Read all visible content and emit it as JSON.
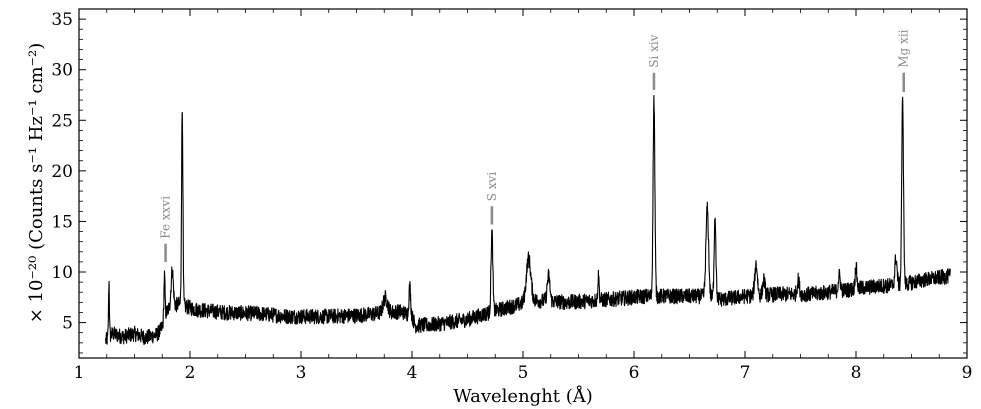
{
  "chart_data": {
    "type": "line",
    "xlabel": "Wavelenght (Å)",
    "ylabel": "× 10⁻²⁰ (Counts s⁻¹ Hz⁻¹ cm⁻²)",
    "xlim": [
      1,
      9
    ],
    "ylim": [
      1.5,
      36
    ],
    "xticks": [
      1,
      2,
      3,
      4,
      5,
      6,
      7,
      8,
      9
    ],
    "yticks": [
      5,
      10,
      15,
      20,
      25,
      30,
      35
    ],
    "grid": false,
    "series_color": "#000000",
    "annotation_color": "#8a8a8a",
    "series": [
      {
        "name": "",
        "baseline": [
          [
            1.24,
            3.2
          ],
          [
            1.3,
            3.9
          ],
          [
            1.4,
            3.6
          ],
          [
            1.5,
            3.9
          ],
          [
            1.6,
            3.5
          ],
          [
            1.7,
            3.8
          ],
          [
            1.74,
            4.3
          ],
          [
            1.78,
            5.8
          ],
          [
            1.82,
            6.6
          ],
          [
            1.9,
            6.8
          ],
          [
            1.96,
            6.6
          ],
          [
            2.05,
            6.3
          ],
          [
            2.3,
            6.0
          ],
          [
            2.6,
            5.9
          ],
          [
            2.9,
            5.6
          ],
          [
            3.2,
            5.6
          ],
          [
            3.5,
            5.7
          ],
          [
            3.7,
            5.9
          ],
          [
            3.9,
            6.1
          ],
          [
            4.0,
            5.6
          ],
          [
            4.03,
            4.7
          ],
          [
            4.2,
            4.8
          ],
          [
            4.5,
            5.3
          ],
          [
            4.7,
            6.0
          ],
          [
            4.9,
            6.6
          ],
          [
            5.1,
            7.2
          ],
          [
            5.4,
            7.0
          ],
          [
            5.8,
            7.3
          ],
          [
            6.1,
            7.6
          ],
          [
            6.3,
            7.6
          ],
          [
            6.6,
            7.6
          ],
          [
            6.8,
            7.3
          ],
          [
            7.0,
            7.6
          ],
          [
            7.3,
            7.8
          ],
          [
            7.6,
            7.8
          ],
          [
            7.9,
            8.2
          ],
          [
            8.2,
            8.6
          ],
          [
            8.4,
            8.7
          ],
          [
            8.6,
            9.2
          ],
          [
            8.85,
            9.6
          ]
        ],
        "lines": [
          [
            1.27,
            5.5,
            0.004
          ],
          [
            1.77,
            4.2,
            0.005
          ],
          [
            1.84,
            3.5,
            0.01
          ],
          [
            1.93,
            19.5,
            0.006
          ],
          [
            3.76,
            1.5,
            0.02
          ],
          [
            3.98,
            2.8,
            0.008
          ],
          [
            4.72,
            7.9,
            0.008
          ],
          [
            5.05,
            4.3,
            0.02
          ],
          [
            5.23,
            2.5,
            0.012
          ],
          [
            5.68,
            2.4,
            0.006
          ],
          [
            6.18,
            19.5,
            0.008
          ],
          [
            6.66,
            8.7,
            0.012
          ],
          [
            6.73,
            8.2,
            0.008
          ],
          [
            7.1,
            3.1,
            0.012
          ],
          [
            7.17,
            1.5,
            0.01
          ],
          [
            7.48,
            1.4,
            0.01
          ],
          [
            7.85,
            1.5,
            0.01
          ],
          [
            8.0,
            2.2,
            0.008
          ],
          [
            8.36,
            2.7,
            0.01
          ],
          [
            8.42,
            18.3,
            0.008
          ]
        ],
        "noise_amplitude": 0.75
      }
    ],
    "annotations": [
      {
        "label": "Fe xxvi",
        "x": 1.78,
        "y_low": 11.0,
        "y_high": 12.8
      },
      {
        "label": "S xvi",
        "x": 4.72,
        "y_low": 14.7,
        "y_high": 16.5
      },
      {
        "label": "Si xiv",
        "x": 6.18,
        "y_low": 28.0,
        "y_high": 29.7
      },
      {
        "label": "Mg xii",
        "x": 8.43,
        "y_low": 27.8,
        "y_high": 29.7
      }
    ]
  }
}
